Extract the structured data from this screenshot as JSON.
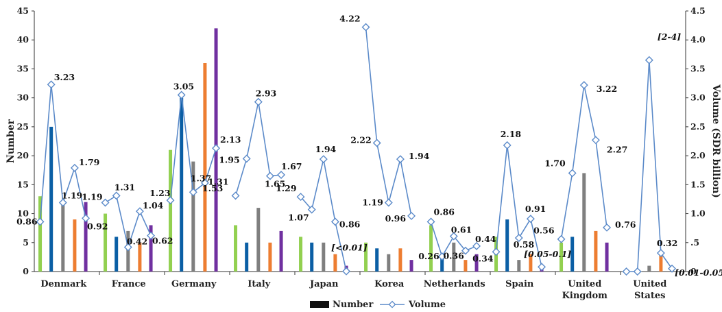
{
  "chart_data": {
    "type": "bar+line",
    "categories": [
      "Denmark",
      "France",
      "Germany",
      "Italy",
      "Japan",
      "Korea",
      "Netherlands",
      "Spain",
      "United Kingdom",
      "United States"
    ],
    "category_lines": [
      [
        "Denmark"
      ],
      [
        "France"
      ],
      [
        "Germany"
      ],
      [
        "Italy"
      ],
      [
        "Japan"
      ],
      [
        "Korea"
      ],
      [
        "Netherlands"
      ],
      [
        "Spain"
      ],
      [
        "United",
        "Kingdom"
      ],
      [
        "United",
        "States"
      ]
    ],
    "bar_colors": [
      "#92d050",
      "#0b5fa5",
      "#7f7f7f",
      "#ed7d31",
      "#7030a0"
    ],
    "bars": [
      [
        13,
        25,
        12,
        9,
        12
      ],
      [
        10,
        6,
        7,
        5,
        8
      ],
      [
        21,
        30,
        19,
        36,
        42
      ],
      [
        8,
        5,
        11,
        5,
        7
      ],
      [
        6,
        5,
        5,
        3,
        1
      ],
      [
        5,
        4,
        3,
        4,
        2
      ],
      [
        8,
        3,
        5,
        2,
        3
      ],
      [
        6,
        9,
        2,
        3,
        1
      ],
      [
        5,
        6,
        17,
        7,
        5
      ],
      [
        0,
        0,
        1,
        3,
        0
      ]
    ],
    "volume": [
      [
        0.86,
        3.23,
        1.19,
        1.79,
        0.92
      ],
      [
        1.19,
        1.31,
        0.42,
        1.04,
        0.62
      ],
      [
        1.23,
        3.05,
        1.37,
        1.53,
        2.13
      ],
      [
        1.31,
        1.95,
        2.93,
        1.65,
        1.67
      ],
      [
        1.29,
        1.07,
        1.94,
        0.86,
        0.005
      ],
      [
        4.22,
        2.22,
        1.19,
        1.94,
        0.96
      ],
      [
        0.86,
        0.26,
        0.61,
        0.36,
        0.44
      ],
      [
        0.34,
        2.18,
        0.58,
        0.91,
        0.08
      ],
      [
        0.56,
        1.7,
        3.22,
        2.27,
        0.76
      ],
      [
        0.0,
        0.0,
        3.65,
        0.32,
        0.05
      ]
    ],
    "data_labels": [
      {
        "text": "0.86",
        "italic": false
      },
      {
        "text": "3.23",
        "italic": false
      },
      {
        "text": "1.19",
        "italic": false
      },
      {
        "text": "1.79",
        "italic": false
      },
      {
        "text": "0.92",
        "italic": false
      },
      {
        "text": "1.19",
        "italic": false
      },
      {
        "text": "1.31",
        "italic": false
      },
      {
        "text": "0.42",
        "italic": false
      },
      {
        "text": "1.04",
        "italic": false
      },
      {
        "text": "0.62",
        "italic": false
      },
      {
        "text": "1.23",
        "italic": false
      },
      {
        "text": "3.05",
        "italic": false
      },
      {
        "text": "1.37",
        "italic": false
      },
      {
        "text": "1.53",
        "italic": false
      },
      {
        "text": "2.13",
        "italic": false
      },
      {
        "text": "1.31",
        "italic": false
      },
      {
        "text": "1.95",
        "italic": false
      },
      {
        "text": "2.93",
        "italic": false
      },
      {
        "text": "1.65",
        "italic": false
      },
      {
        "text": "1.67",
        "italic": false
      },
      {
        "text": "1.29",
        "italic": false
      },
      {
        "text": "1.07",
        "italic": false
      },
      {
        "text": "1.94",
        "italic": false
      },
      {
        "text": "0.86",
        "italic": false
      },
      {
        "text": "[<0.01]",
        "italic": true
      },
      {
        "text": "4.22",
        "italic": false
      },
      {
        "text": "2.22",
        "italic": false
      },
      {
        "text": "1.19",
        "italic": false
      },
      {
        "text": "1.94",
        "italic": false
      },
      {
        "text": "0.96",
        "italic": false
      },
      {
        "text": "0.86",
        "italic": false
      },
      {
        "text": "0.26",
        "italic": false
      },
      {
        "text": "0.61",
        "italic": false
      },
      {
        "text": "0.36",
        "italic": false
      },
      {
        "text": "0.44",
        "italic": false
      },
      {
        "text": "0.34",
        "italic": false
      },
      {
        "text": "2.18",
        "italic": false
      },
      {
        "text": "0.58",
        "italic": false
      },
      {
        "text": "0.91",
        "italic": false
      },
      {
        "text": "[0.05-0.1]",
        "italic": true
      },
      {
        "text": "0.56",
        "italic": false
      },
      {
        "text": "1.70",
        "italic": false
      },
      {
        "text": "3.22",
        "italic": false
      },
      {
        "text": "2.27",
        "italic": false
      },
      {
        "text": "0.76",
        "italic": false
      },
      {
        "text": "[2-4]",
        "italic": true
      },
      {
        "text": "0.32",
        "italic": false
      },
      {
        "text": "[0.01-0.05]",
        "italic": true
      }
    ],
    "y_left": {
      "label": "Number",
      "min": 0,
      "max": 45,
      "ticks": [
        0,
        5,
        10,
        15,
        20,
        25,
        30,
        35,
        40,
        45
      ],
      "tick_labels": [
        "0",
        "5",
        "10",
        "15",
        "20",
        "25",
        "30",
        "35",
        "40",
        "45"
      ]
    },
    "y_right": {
      "label": "Volume (SDR billion)",
      "min": 0,
      "max": 4.5,
      "ticks": [
        0,
        0.5,
        1.0,
        1.5,
        2.0,
        2.5,
        3.0,
        3.5,
        4.0,
        4.5
      ],
      "tick_labels": [
        "0",
        ".5",
        "1.0",
        "1.5",
        "2.0",
        "2.5",
        "3.0",
        "3.5",
        "4.0",
        "4.5"
      ]
    },
    "legend": {
      "position": "bottom",
      "items": [
        {
          "name": "Number",
          "kind": "bar",
          "color": "#111111"
        },
        {
          "name": "Volume",
          "kind": "line",
          "color": "#5b8ac9"
        }
      ]
    },
    "line_color": "#5b8ac9",
    "grid": false
  }
}
